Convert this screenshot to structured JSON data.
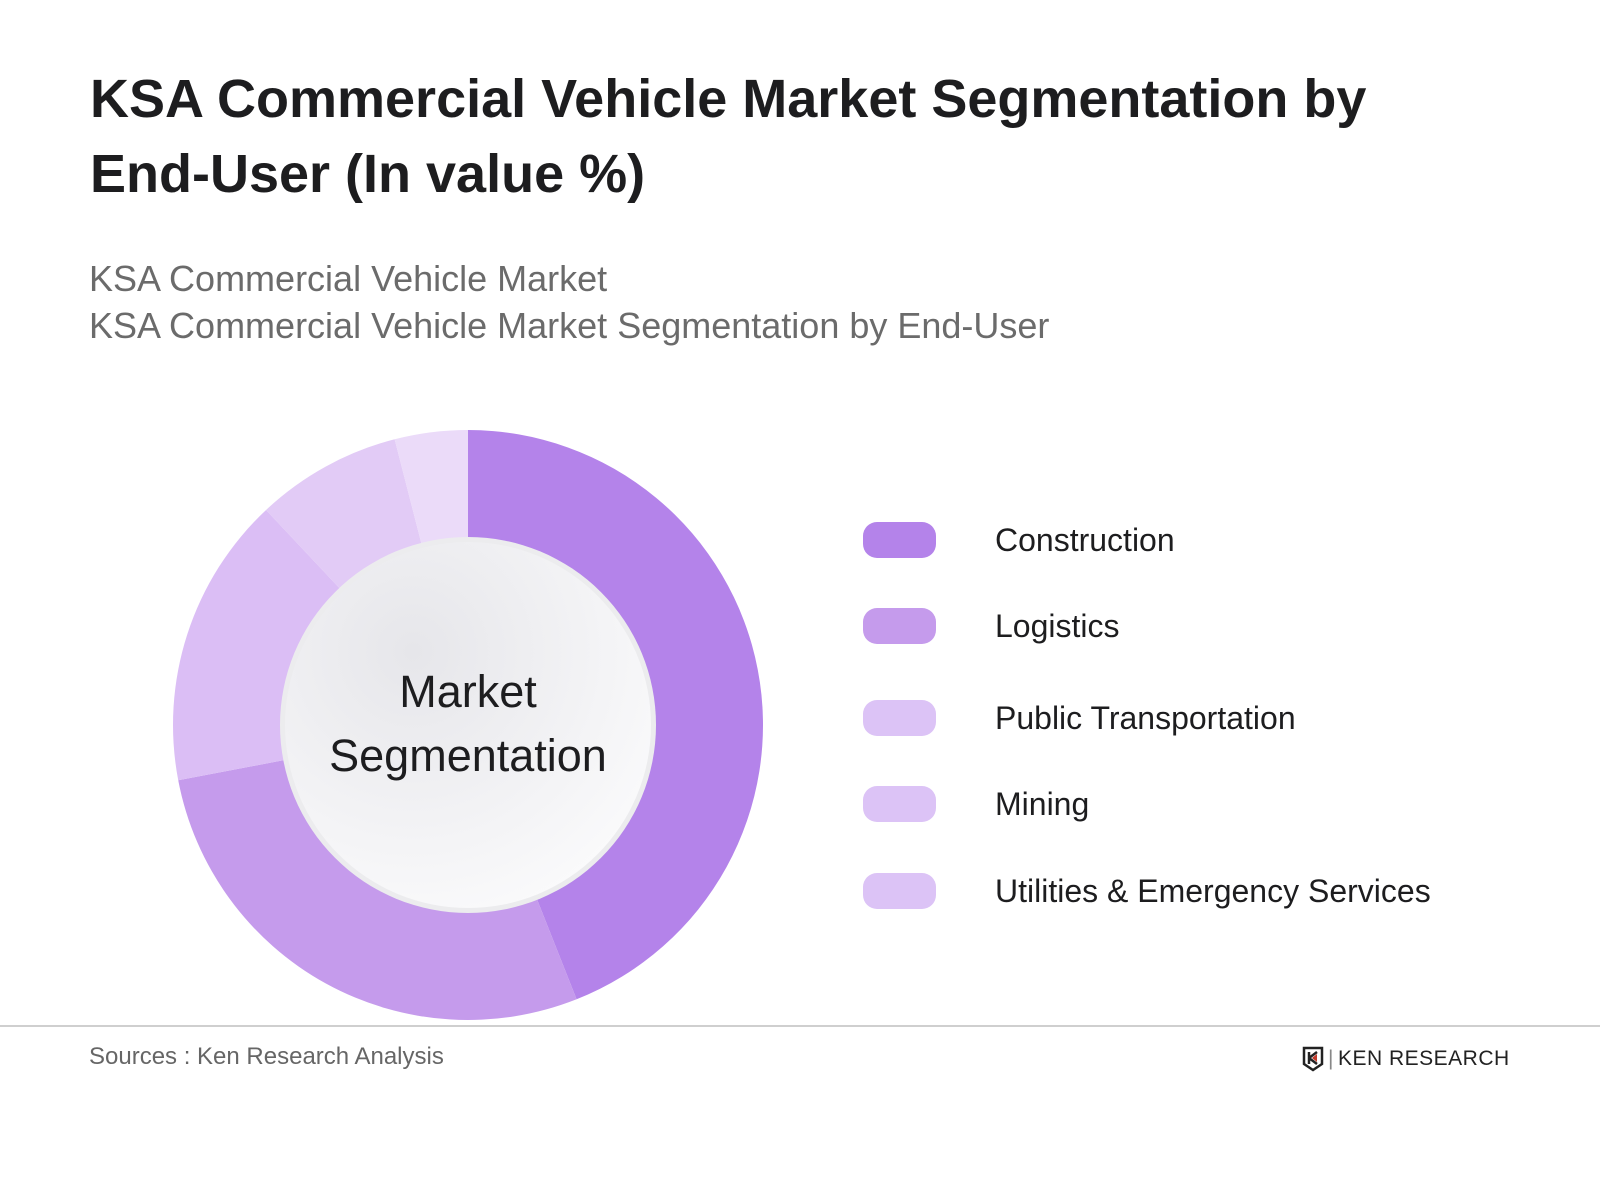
{
  "header": {
    "title": "KSA Commercial Vehicle Market Segmentation by End-User (In value %)",
    "subtitle_line1": "KSA Commercial Vehicle Market",
    "subtitle_line2": "KSA Commercial Vehicle Market Segmentation by End-User"
  },
  "chart_data": {
    "type": "pie",
    "variant": "donut",
    "center_label": "Market Segmentation",
    "categories": [
      "Construction",
      "Logistics",
      "Public Transportation",
      "Mining",
      "Utilities & Emergency Services"
    ],
    "values": [
      44,
      28,
      16,
      8,
      4
    ],
    "unit": "%",
    "colors": [
      "#b483ea",
      "#c59bec",
      "#dbbef5",
      "#e2cbf6",
      "#ebdbf9"
    ],
    "legend_colors": [
      "#b483ea",
      "#c59bec",
      "#dcc3f6",
      "#dcc3f6",
      "#dcc3f6"
    ],
    "legend_position": "right"
  },
  "footer": {
    "source": "Sources : Ken Research Analysis",
    "logo_text": "KEN RESEARCH"
  }
}
